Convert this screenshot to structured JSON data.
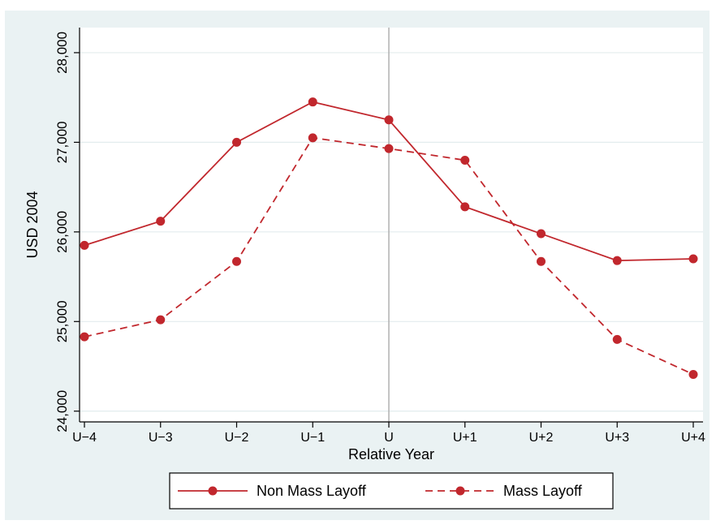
{
  "chart_data": {
    "type": "line",
    "xlabel": "Relative Year",
    "ylabel": "USD 2004",
    "categories": [
      "U−4",
      "U−3",
      "U−2",
      "U−1",
      "U",
      "U+1",
      "U+2",
      "U+3",
      "U+4"
    ],
    "yticks": [
      24000,
      25000,
      26000,
      27000,
      28000
    ],
    "ytick_labels": [
      "24,000",
      "25,000",
      "26,000",
      "27,000",
      "28,000"
    ],
    "ylim": [
      23880,
      28280
    ],
    "vertical_reference_line_at": "U",
    "grid": "horizontal",
    "legend_position": "bottom",
    "series": [
      {
        "name": "Non Mass Layoff",
        "style": "solid",
        "values": [
          25850,
          26120,
          27000,
          27450,
          27250,
          26280,
          25980,
          25680,
          25700
        ]
      },
      {
        "name": "Mass Layoff",
        "style": "dashed",
        "values": [
          24830,
          25020,
          25670,
          27050,
          26930,
          26800,
          25670,
          24800,
          24410
        ]
      }
    ],
    "colors": {
      "series": "#c1272d",
      "frame_background": "#eaf2f3",
      "plot_background": "#ffffff",
      "grid": "#e3ecee",
      "reference_line": "#b0b0b0",
      "axis": "#000000"
    }
  }
}
